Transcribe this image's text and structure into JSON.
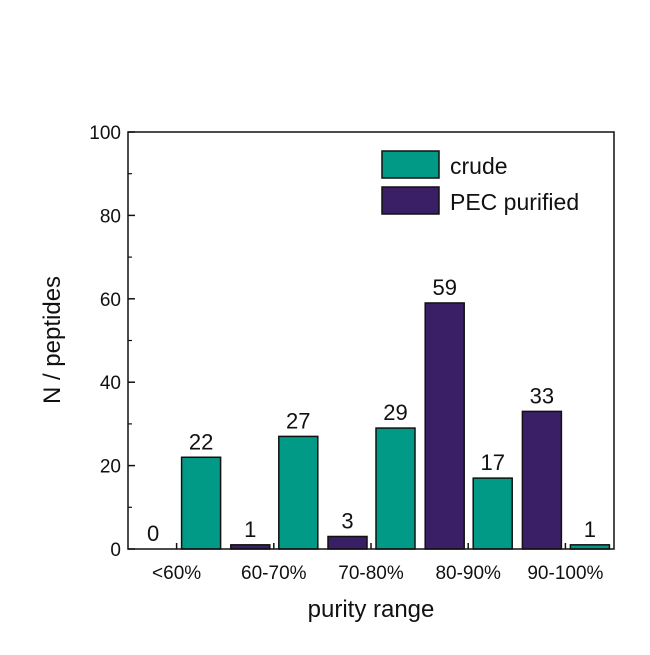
{
  "chart_data": {
    "type": "bar",
    "categories": [
      "<60%",
      "60-70%",
      "70-80%",
      "80-90%",
      "90-100%"
    ],
    "series": [
      {
        "name": "crude",
        "values": [
          22,
          27,
          29,
          17,
          1
        ],
        "color": "#009a86"
      },
      {
        "name": "PEC purified",
        "values": [
          0,
          1,
          3,
          59,
          33
        ],
        "color": "#3a1f66"
      }
    ],
    "xlabel": "purity range",
    "ylabel": "N / peptides",
    "ylim": [
      0,
      100
    ],
    "yticks": [
      0,
      20,
      40,
      60,
      80,
      100
    ],
    "legend_position": "top-right",
    "grid": false,
    "bar_order_per_category": [
      "PEC purified",
      "crude"
    ]
  }
}
